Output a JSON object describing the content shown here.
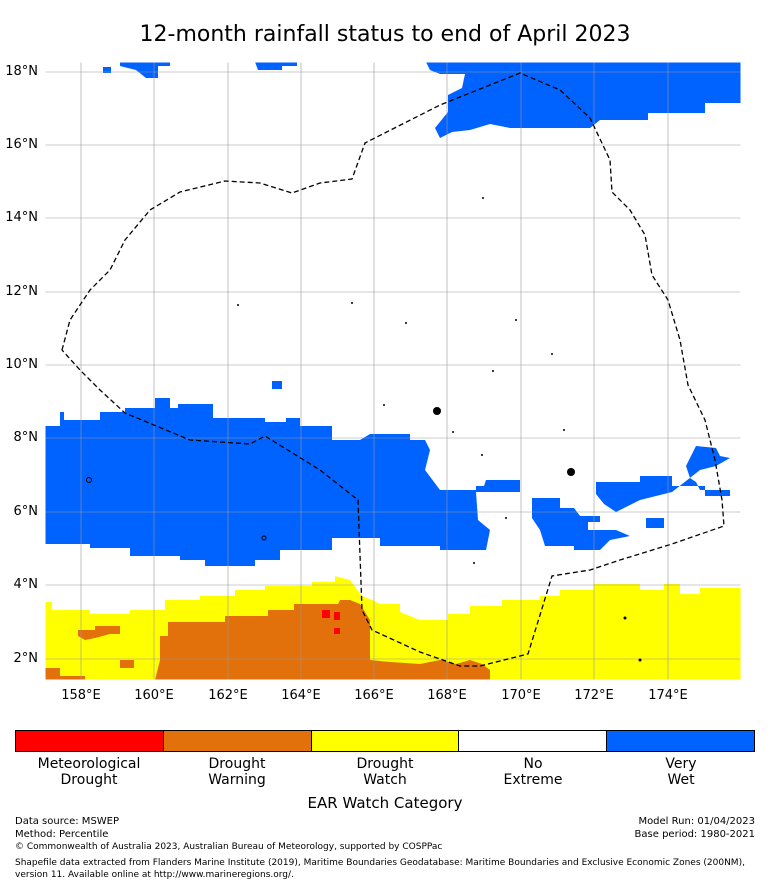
{
  "title": "12-month rainfall status to end of April 2023",
  "y_ticks": [
    "18°N",
    "16°N",
    "14°N",
    "12°N",
    "10°N",
    "8°N",
    "6°N",
    "4°N",
    "2°N"
  ],
  "x_ticks": [
    "158°E",
    "160°E",
    "162°E",
    "164°E",
    "166°E",
    "168°E",
    "170°E",
    "172°E",
    "174°E"
  ],
  "categories": [
    {
      "line1": "Meteorological",
      "line2": "Drought",
      "color": "#ff0000"
    },
    {
      "line1": "Drought",
      "line2": "Warning",
      "color": "#e2700b"
    },
    {
      "line1": "Drought",
      "line2": "Watch",
      "color": "#ffff00"
    },
    {
      "line1": "No",
      "line2": "Extreme",
      "color": "#ffffff"
    },
    {
      "line1": "Very",
      "line2": "Wet",
      "color": "#0062ff"
    }
  ],
  "legend_title": "EAR Watch Category",
  "footer": {
    "data_source": "Data source: MSWEP",
    "method": "Method: Percentile",
    "copyright": "© Commonwealth of Australia 2023, Australian Bureau of Meteorology, supported by COSPPac",
    "model_run": "Model Run: 01/04/2023",
    "base_period": "Base period: 1980-2021",
    "shapefile_1": "Shapefile data extracted from Flanders Marine Institute (2019), Maritime Boundaries Geodatabase: Maritime Boundaries and Exclusive Economic Zones (200NM),",
    "shapefile_2": "version 11. Available online at http://www.marineregions.org/."
  }
}
